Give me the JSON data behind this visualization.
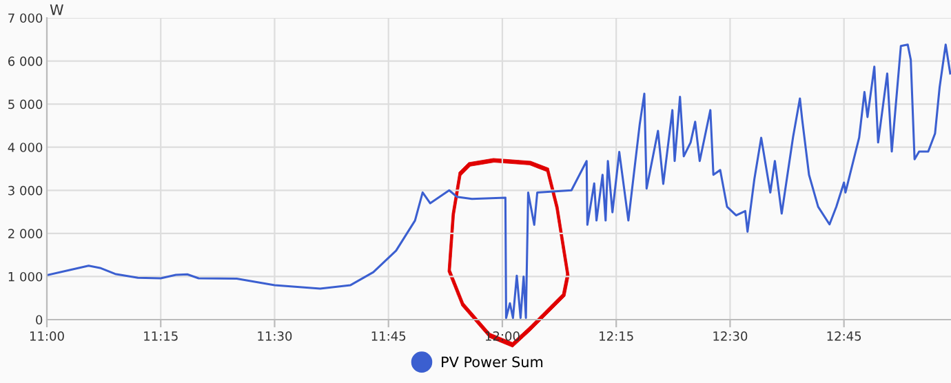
{
  "chart_data": {
    "type": "line",
    "ylabel": "W",
    "legend": "bottom",
    "grid": true,
    "marker": "none",
    "line_style": "solid",
    "xlim": [
      11.0,
      12.985
    ],
    "ylim": [
      0,
      7000
    ],
    "xticks": [
      {
        "value": 11.0,
        "label": "11:00"
      },
      {
        "value": 11.25,
        "label": "11:15"
      },
      {
        "value": 11.5,
        "label": "11:30"
      },
      {
        "value": 11.75,
        "label": "11:45"
      },
      {
        "value": 12.0,
        "label": "12:00"
      },
      {
        "value": 12.25,
        "label": "12:15"
      },
      {
        "value": 12.5,
        "label": "12:30"
      },
      {
        "value": 12.75,
        "label": "12:45"
      }
    ],
    "yticks": [
      {
        "value": 0,
        "label": "0"
      },
      {
        "value": 1000,
        "label": "1 000"
      },
      {
        "value": 2000,
        "label": "2 000"
      },
      {
        "value": 3000,
        "label": "3 000"
      },
      {
        "value": 4000,
        "label": "4 000"
      },
      {
        "value": 5000,
        "label": "5 000"
      },
      {
        "value": 6000,
        "label": "6 000"
      },
      {
        "value": 7000,
        "label": "7 000"
      }
    ],
    "series": [
      {
        "name": "PV Power Sum",
        "color": "#3b5fd0",
        "x": [
          11.0,
          11.05,
          11.0917,
          11.1167,
          11.15,
          11.2,
          11.25,
          11.2833,
          11.3083,
          11.3333,
          11.4167,
          11.5,
          11.6,
          11.6667,
          11.7167,
          11.7667,
          11.8083,
          11.825,
          11.8417,
          11.8833,
          11.9,
          11.9333,
          12.0067,
          12.0083,
          12.0167,
          12.0233,
          12.0317,
          12.04,
          12.0467,
          12.0517,
          12.0567,
          12.07,
          12.0767,
          12.1517,
          12.185,
          12.1867,
          12.2017,
          12.2067,
          12.22,
          12.2267,
          12.2317,
          12.2417,
          12.2567,
          12.2767,
          12.3017,
          12.3117,
          12.3167,
          12.3417,
          12.3533,
          12.3733,
          12.3783,
          12.39,
          12.3983,
          12.4133,
          12.4233,
          12.4333,
          12.4567,
          12.4633,
          12.4783,
          12.4933,
          12.5133,
          12.5333,
          12.5383,
          12.5533,
          12.5683,
          12.5883,
          12.5983,
          12.6133,
          12.6383,
          12.6533,
          12.6583,
          12.6733,
          12.6933,
          12.7183,
          12.7333,
          12.75,
          12.7533,
          12.7833,
          12.795,
          12.8017,
          12.8167,
          12.825,
          12.845,
          12.855,
          12.875,
          12.89,
          12.8967,
          12.905,
          12.915,
          12.935,
          12.95,
          12.96,
          12.9733,
          12.9833
        ],
        "values": [
          1030,
          1150,
          1250,
          1200,
          1060,
          970,
          960,
          1040,
          1050,
          960,
          950,
          800,
          720,
          800,
          1100,
          1600,
          2300,
          2950,
          2700,
          3000,
          2850,
          2800,
          2830,
          40,
          380,
          40,
          1020,
          40,
          1000,
          40,
          2950,
          2200,
          2950,
          3000,
          3680,
          2200,
          3160,
          2300,
          3360,
          2300,
          3680,
          2490,
          3890,
          2300,
          4540,
          5240,
          3040,
          4380,
          3150,
          4860,
          3680,
          5170,
          3790,
          4110,
          4590,
          3680,
          4860,
          3360,
          3470,
          2620,
          2420,
          2520,
          2040,
          3260,
          4220,
          2950,
          3680,
          2460,
          4240,
          5130,
          4640,
          3360,
          2620,
          2210,
          2620,
          3180,
          2950,
          4220,
          5280,
          4700,
          5870,
          4110,
          5710,
          3900,
          6350,
          6380,
          6030,
          3720,
          3900,
          3900,
          4320,
          5390,
          6380,
          5710
        ]
      }
    ]
  }
}
